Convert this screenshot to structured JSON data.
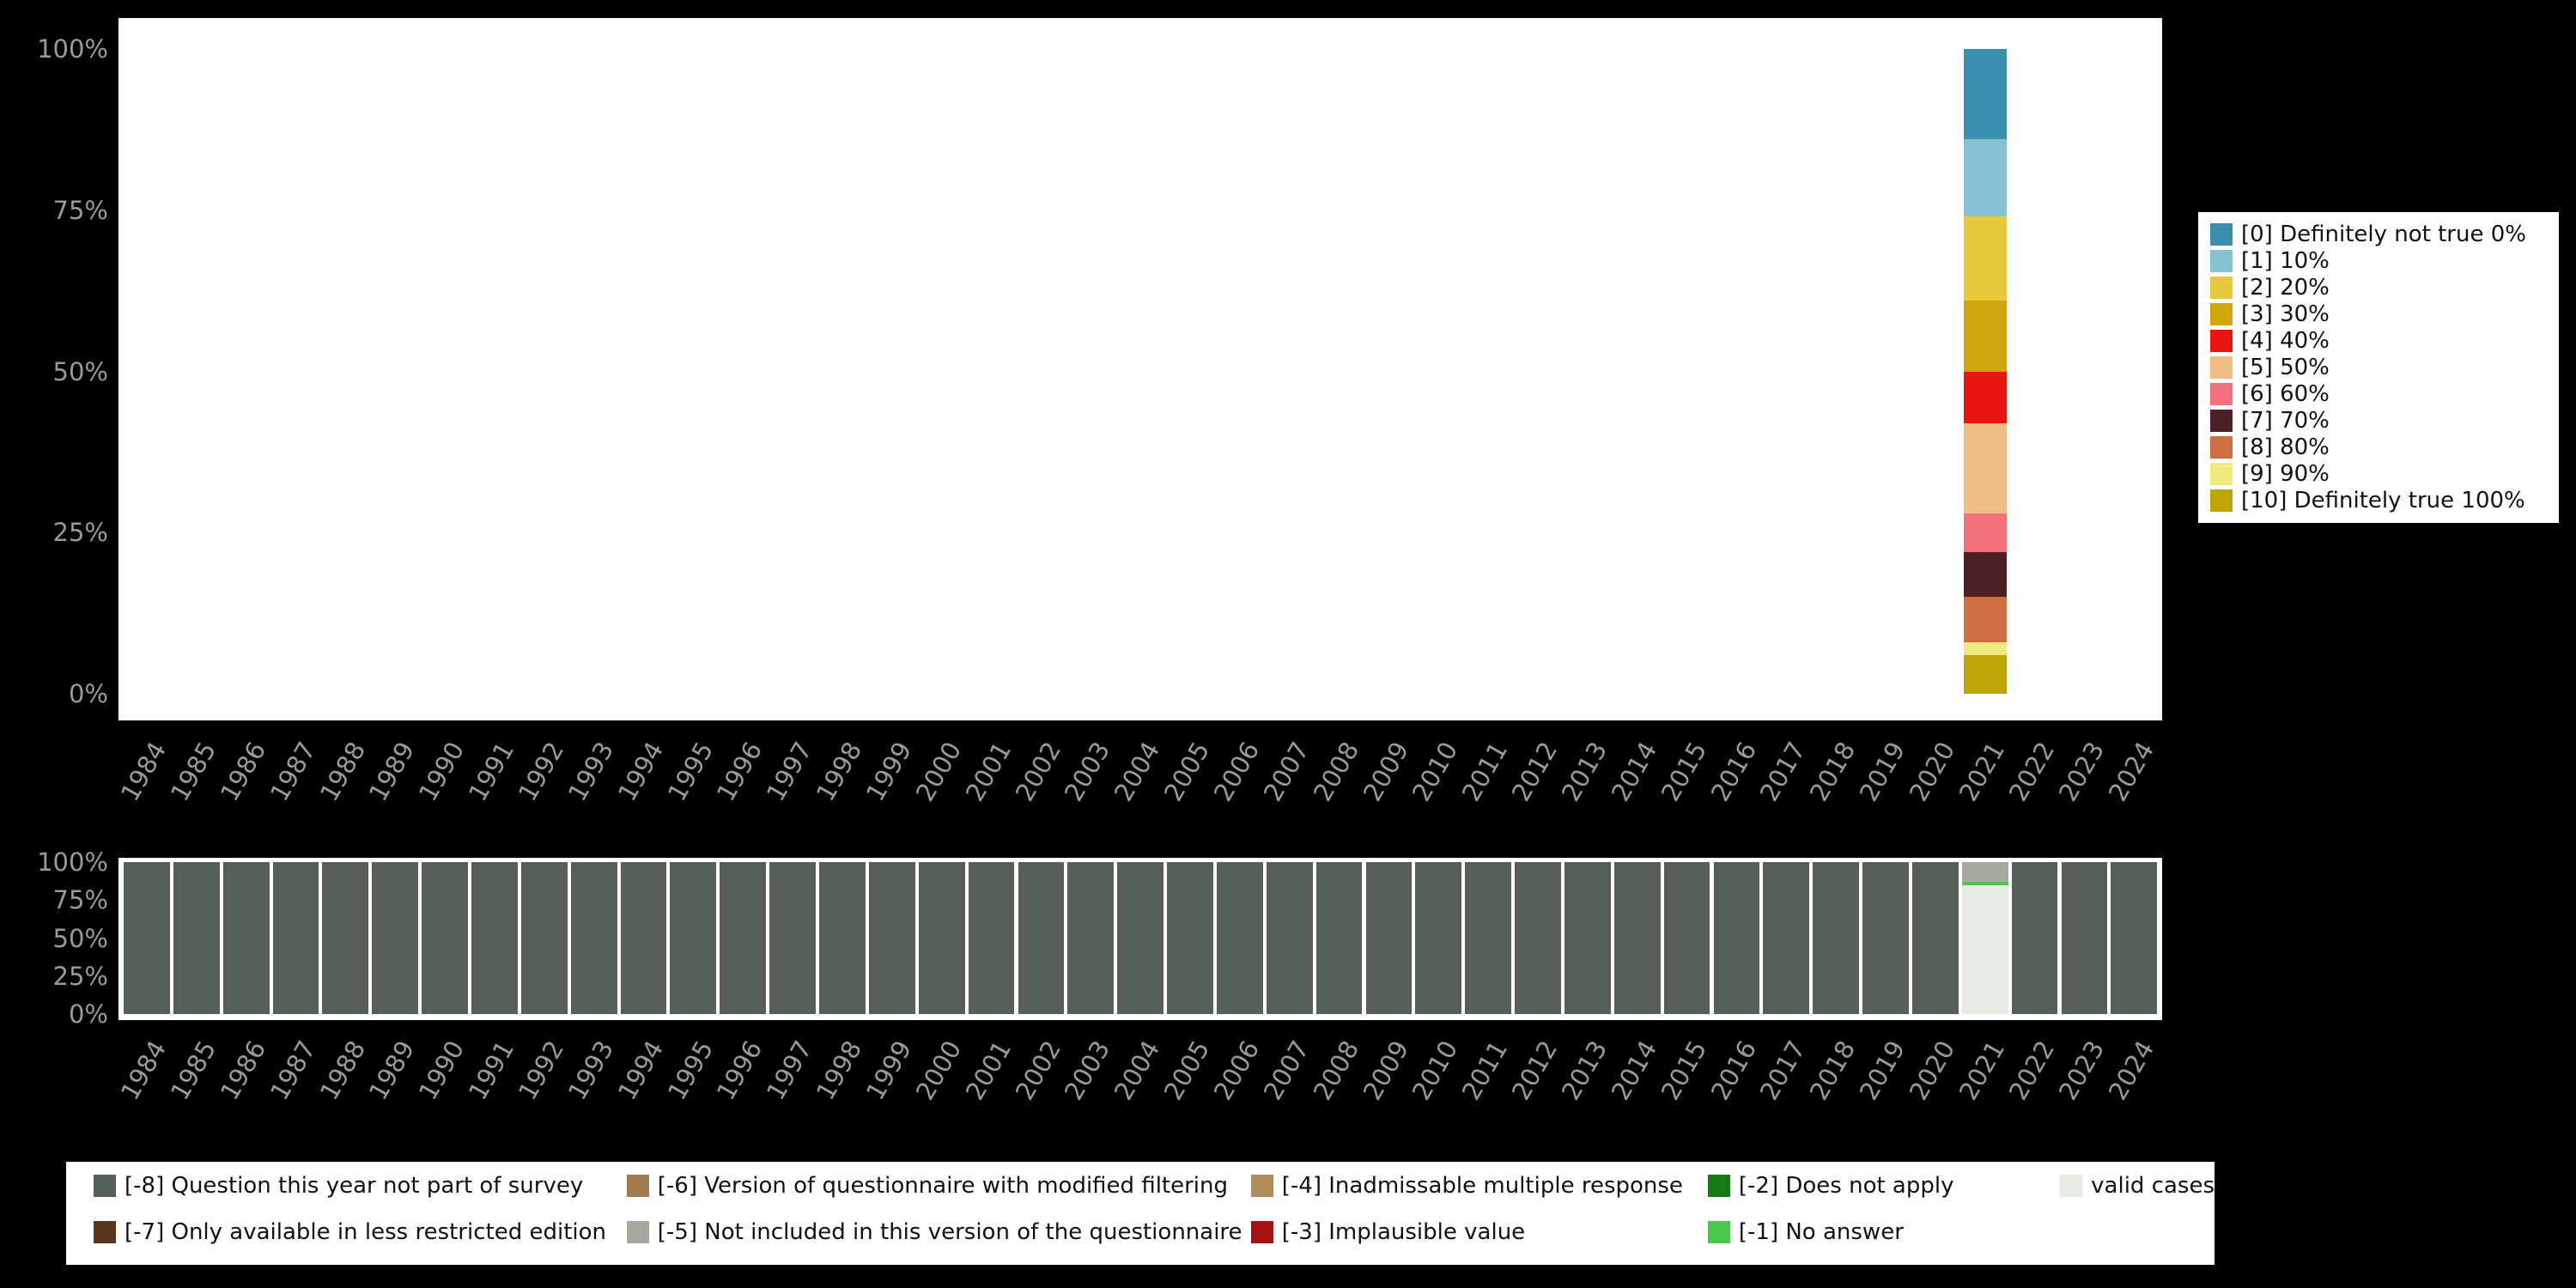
{
  "app": {
    "background": "#000000",
    "panel_background": "#ffffff",
    "axis_text_color": "#9a9a9a",
    "legend_text_color": "#111111"
  },
  "chart_data": [
    {
      "id": "responses",
      "type": "bar",
      "stacked": true,
      "title": "",
      "xlabel": "",
      "ylabel": "",
      "ylim": [
        0,
        100
      ],
      "grid": false,
      "legend_position": "right",
      "y_tick_labels": [
        "100%",
        "75%",
        "50%",
        "25%",
        "0%"
      ],
      "categories": [
        "1984",
        "1985",
        "1986",
        "1987",
        "1988",
        "1989",
        "1990",
        "1991",
        "1992",
        "1993",
        "1994",
        "1995",
        "1996",
        "1997",
        "1998",
        "1999",
        "2000",
        "2001",
        "2002",
        "2003",
        "2004",
        "2005",
        "2006",
        "2007",
        "2008",
        "2009",
        "2010",
        "2011",
        "2012",
        "2013",
        "2014",
        "2015",
        "2016",
        "2017",
        "2018",
        "2019",
        "2020",
        "2021",
        "2022",
        "2023",
        "2024"
      ],
      "series": [
        {
          "name": "[0] Definitely not true 0%",
          "color": "#3a90ae",
          "default": 0,
          "data": {
            "2021": 14
          }
        },
        {
          "name": "[1] 10%",
          "color": "#85c1d3",
          "default": 0,
          "data": {
            "2021": 12
          }
        },
        {
          "name": "[2] 20%",
          "color": "#e9c93c",
          "default": 0,
          "data": {
            "2021": 13
          }
        },
        {
          "name": "[3] 30%",
          "color": "#cfa60e",
          "default": 0,
          "data": {
            "2021": 11
          }
        },
        {
          "name": "[4] 40%",
          "color": "#e81510",
          "default": 0,
          "data": {
            "2021": 8
          }
        },
        {
          "name": "[5] 50%",
          "color": "#efbd86",
          "default": 0,
          "data": {
            "2021": 14
          }
        },
        {
          "name": "[6] 60%",
          "color": "#f2707c",
          "default": 0,
          "data": {
            "2021": 6
          }
        },
        {
          "name": "[7] 70%",
          "color": "#4d2026",
          "default": 0,
          "data": {
            "2021": 7
          }
        },
        {
          "name": "[8] 80%",
          "color": "#cd6f41",
          "default": 0,
          "data": {
            "2021": 7
          }
        },
        {
          "name": "[9] 90%",
          "color": "#eeea80",
          "default": 0,
          "data": {
            "2021": 2
          }
        },
        {
          "name": "[10] Definitely true 100%",
          "color": "#bda408",
          "default": 0,
          "data": {
            "2021": 6
          }
        }
      ]
    },
    {
      "id": "missing-values",
      "type": "bar",
      "stacked": true,
      "title": "",
      "xlabel": "",
      "ylabel": "",
      "ylim": [
        0,
        100
      ],
      "grid": false,
      "legend_position": "bottom",
      "y_tick_labels": [
        "100%",
        "75%",
        "50%",
        "25%",
        "0%"
      ],
      "categories": [
        "1984",
        "1985",
        "1986",
        "1987",
        "1988",
        "1989",
        "1990",
        "1991",
        "1992",
        "1993",
        "1994",
        "1995",
        "1996",
        "1997",
        "1998",
        "1999",
        "2000",
        "2001",
        "2002",
        "2003",
        "2004",
        "2005",
        "2006",
        "2007",
        "2008",
        "2009",
        "2010",
        "2011",
        "2012",
        "2013",
        "2014",
        "2015",
        "2016",
        "2017",
        "2018",
        "2019",
        "2020",
        "2021",
        "2022",
        "2023",
        "2024"
      ],
      "series": [
        {
          "name": "[-8] Question this year not part of survey",
          "color": "#565e58",
          "default": 100,
          "data": {
            "2021": 0
          }
        },
        {
          "name": "[-7] Only available in less restricted edition",
          "color": "#59331a",
          "default": 0,
          "data": {}
        },
        {
          "name": "[-6] Version of questionnaire with modified filtering",
          "color": "#a37b50",
          "default": 0,
          "data": {}
        },
        {
          "name": "[-5] Not included in this version of the questionnaire",
          "color": "#a5aaa0",
          "default": 0,
          "data": {
            "2021": 13
          }
        },
        {
          "name": "[-4] Inadmissable multiple response",
          "color": "#b18b59",
          "default": 0,
          "data": {}
        },
        {
          "name": "[-3] Implausible value",
          "color": "#a31313",
          "default": 0,
          "data": {}
        },
        {
          "name": "[-2] Does not apply",
          "color": "#157a15",
          "default": 0,
          "data": {}
        },
        {
          "name": "[-1] No answer",
          "color": "#4cc94c",
          "default": 0,
          "data": {
            "2021": 2
          }
        },
        {
          "name": "valid cases",
          "color": "#e6ebe4",
          "default": 0,
          "data": {
            "2021": 85
          }
        }
      ]
    }
  ]
}
